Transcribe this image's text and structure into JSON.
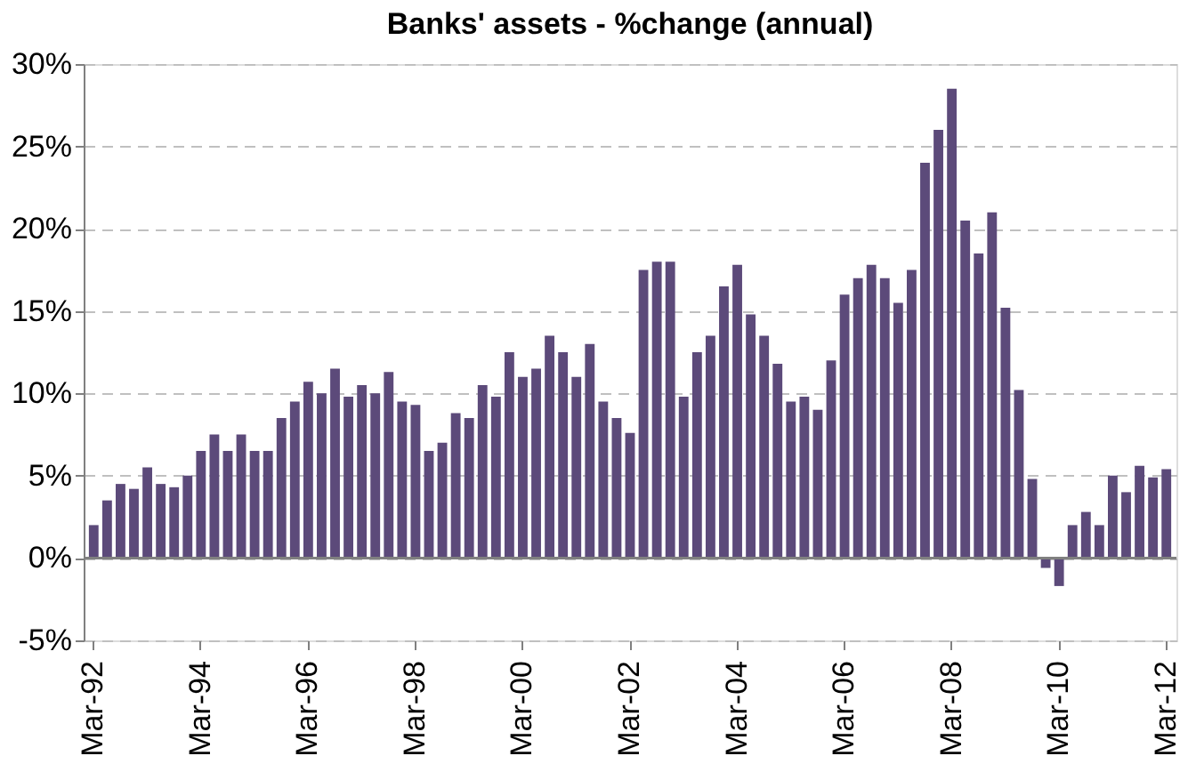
{
  "chart_data": {
    "type": "bar",
    "title": "Banks' assets - %change (annual)",
    "categories": [
      "Mar-92",
      null,
      null,
      null,
      null,
      null,
      null,
      null,
      "Mar-94",
      null,
      null,
      null,
      null,
      null,
      null,
      null,
      "Mar-96",
      null,
      null,
      null,
      null,
      null,
      null,
      null,
      "Mar-98",
      null,
      null,
      null,
      null,
      null,
      null,
      null,
      "Mar-00",
      null,
      null,
      null,
      null,
      null,
      null,
      null,
      "Mar-02",
      null,
      null,
      null,
      null,
      null,
      null,
      null,
      "Mar-04",
      null,
      null,
      null,
      null,
      null,
      null,
      null,
      "Mar-06",
      null,
      null,
      null,
      null,
      null,
      null,
      null,
      "Mar-08",
      null,
      null,
      null,
      null,
      null,
      null,
      null,
      "Mar-10",
      null,
      null,
      null,
      null,
      null,
      null,
      null,
      "Mar-12"
    ],
    "series": [
      {
        "color": "#5c4a7a",
        "values": [
          2.0,
          3.5,
          4.5,
          4.2,
          5.5,
          4.5,
          4.3,
          5.0,
          6.5,
          7.5,
          6.5,
          7.5,
          6.5,
          6.5,
          8.5,
          9.5,
          10.7,
          10.0,
          11.5,
          9.8,
          10.5,
          10.0,
          11.3,
          9.5,
          9.3,
          6.5,
          7.0,
          8.8,
          8.5,
          10.5,
          9.8,
          12.5,
          11.0,
          11.5,
          13.5,
          12.5,
          11.0,
          13.0,
          9.5,
          8.5,
          7.6,
          17.5,
          18.0,
          18.0,
          9.8,
          12.5,
          13.5,
          16.5,
          17.8,
          14.8,
          13.5,
          11.8,
          9.5,
          9.8,
          9.0,
          12.0,
          16.0,
          17.0,
          17.8,
          17.0,
          15.5,
          17.5,
          24.0,
          26.0,
          28.5,
          20.5,
          18.5,
          21.0,
          15.2,
          10.2,
          4.8,
          -0.6,
          -1.7,
          2.0,
          2.8,
          2.0,
          5.0,
          4.0,
          5.6,
          4.9,
          5.4
        ]
      }
    ],
    "ylim": [
      -5,
      30
    ],
    "yticks": [
      {
        "value": -5,
        "label": "-5%"
      },
      {
        "value": 0,
        "label": "0%"
      },
      {
        "value": 5,
        "label": "5%"
      },
      {
        "value": 10,
        "label": "10%"
      },
      {
        "value": 15,
        "label": "15%"
      },
      {
        "value": 20,
        "label": "20%"
      },
      {
        "value": 25,
        "label": "25%"
      },
      {
        "value": 30,
        "label": "30%"
      }
    ],
    "grid": "y",
    "ref_lines": [
      {
        "axis": "y",
        "value": 0,
        "color": "#808080",
        "line_style": "solid"
      }
    ]
  }
}
